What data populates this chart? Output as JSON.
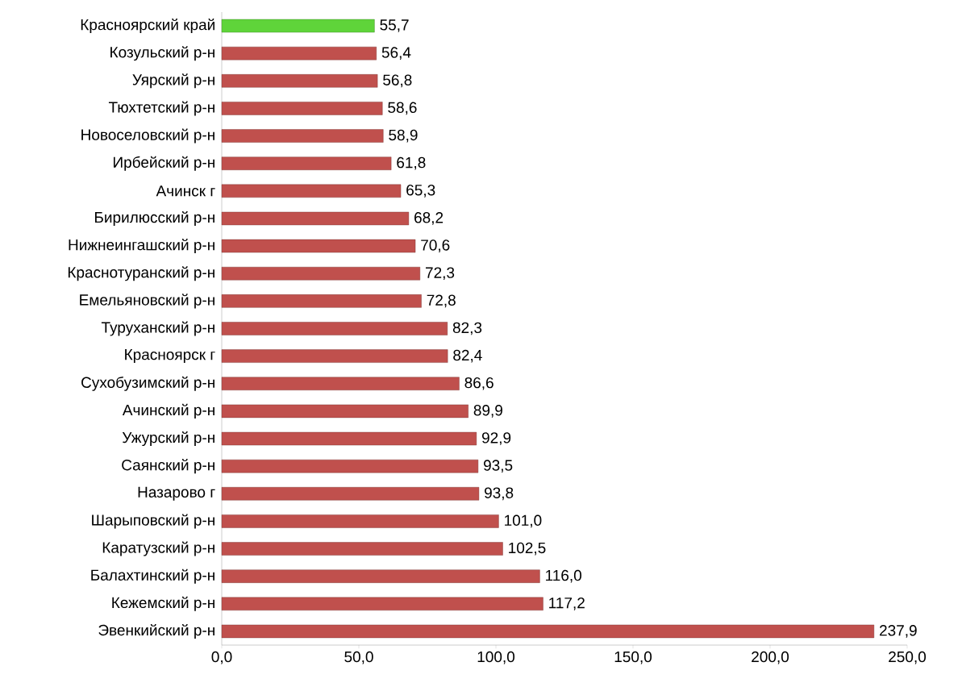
{
  "chart_data": {
    "type": "bar",
    "orientation": "horizontal",
    "categories": [
      "Красноярский край",
      "Козульский р-н",
      "Уярский р-н",
      "Тюхтетский р-н",
      "Новоселовский р-н",
      "Ирбейский р-н",
      "Ачинск г",
      "Бирилюсский р-н",
      "Нижнеингашский р-н",
      "Краснотуранский р-н",
      "Емельяновский р-н",
      "Туруханский р-н",
      "Красноярск г",
      "Сухобузимский р-н",
      "Ачинский р-н",
      "Ужурский р-н",
      "Саянский р-н",
      "Назарово г",
      "Шарыповский р-н",
      "Каратузский р-н",
      "Балахтинский р-н",
      "Кежемский р-н",
      "Эвенкийский р-н"
    ],
    "values": [
      55.7,
      56.4,
      56.8,
      58.6,
      58.9,
      61.8,
      65.3,
      68.2,
      70.6,
      72.3,
      72.8,
      82.3,
      82.4,
      86.6,
      89.9,
      92.9,
      93.5,
      93.8,
      101.0,
      102.5,
      116.0,
      117.2,
      237.9
    ],
    "value_labels": [
      "55,7",
      "56,4",
      "56,8",
      "58,6",
      "58,9",
      "61,8",
      "65,3",
      "68,2",
      "70,6",
      "72,3",
      "72,8",
      "82,3",
      "82,4",
      "86,6",
      "89,9",
      "92,9",
      "93,5",
      "93,8",
      "101,0",
      "102,5",
      "116,0",
      "117,2",
      "237,9"
    ],
    "colors": [
      "#5fd43a",
      "#c0504d",
      "#c0504d",
      "#c0504d",
      "#c0504d",
      "#c0504d",
      "#c0504d",
      "#c0504d",
      "#c0504d",
      "#c0504d",
      "#c0504d",
      "#c0504d",
      "#c0504d",
      "#c0504d",
      "#c0504d",
      "#c0504d",
      "#c0504d",
      "#c0504d",
      "#c0504d",
      "#c0504d",
      "#c0504d",
      "#c0504d",
      "#c0504d"
    ],
    "xlim": [
      0,
      250
    ],
    "xticks": [
      {
        "value": 0,
        "label": "0,0"
      },
      {
        "value": 50,
        "label": "50,0"
      },
      {
        "value": 100,
        "label": "100,0"
      },
      {
        "value": 150,
        "label": "150,0"
      },
      {
        "value": 200,
        "label": "200,0"
      },
      {
        "value": 250,
        "label": "250,0"
      }
    ],
    "grid": false
  }
}
